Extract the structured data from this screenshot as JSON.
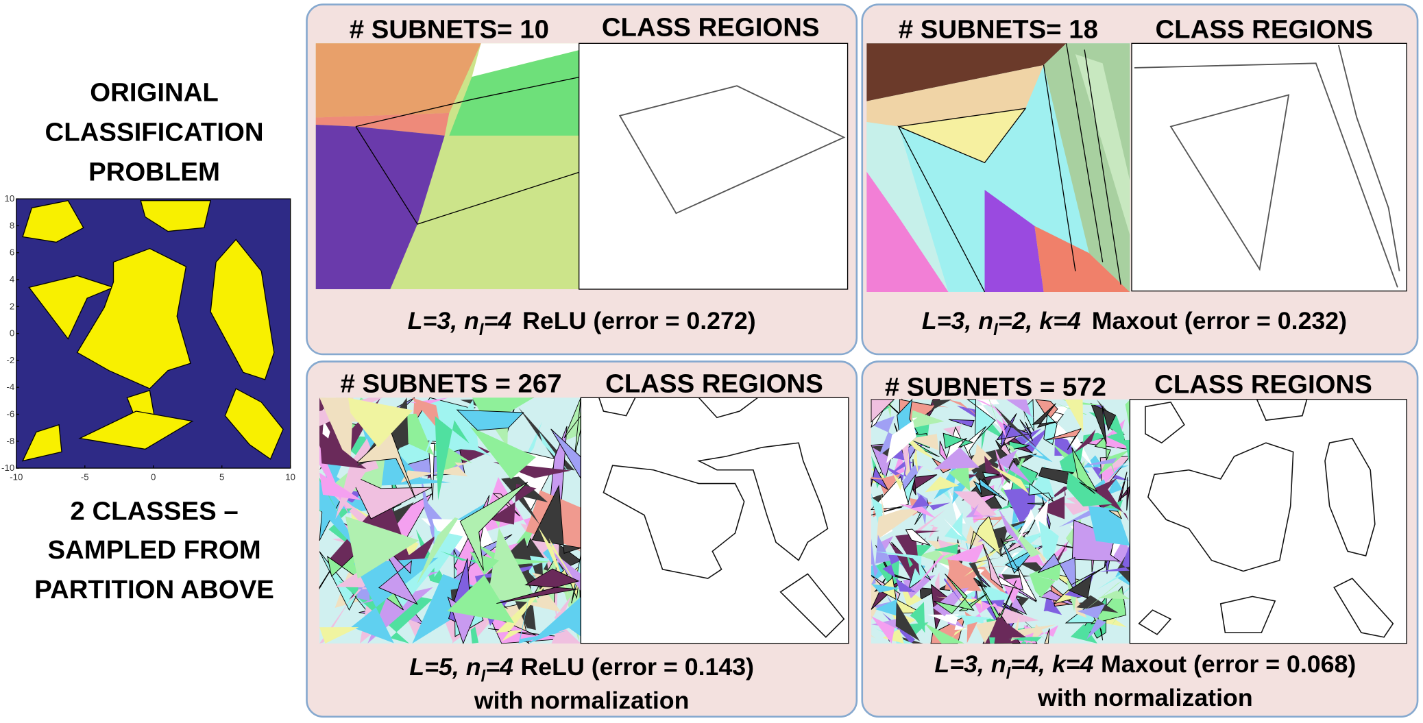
{
  "left": {
    "title_lines": [
      "ORIGINAL",
      "CLASSIFICATION",
      "PROBLEM"
    ],
    "caption_lines": [
      "2 CLASSES –",
      "SAMPLED FROM",
      "PARTITION ABOVE"
    ],
    "plot": {
      "xticks": [
        -10,
        -5,
        0,
        5,
        10
      ],
      "yticks": [
        10,
        8,
        6,
        4,
        2,
        0,
        -2,
        -4,
        -6,
        -8,
        -10
      ]
    }
  },
  "panels": [
    {
      "subnets": "# SUBNETS= 10",
      "regions_title": "CLASS REGIONS",
      "caption_parts": [
        "L=3, n",
        "l",
        "=4",
        "ReLU (error = 0.272)"
      ]
    },
    {
      "subnets": "# SUBNETS= 18",
      "regions_title": "CLASS REGIONS",
      "caption_parts": [
        "L=3, n",
        "l",
        "=2, k=4",
        "Maxout (error = 0.232)"
      ]
    },
    {
      "subnets": "# SUBNETS = 267",
      "regions_title": "CLASS REGIONS",
      "caption_parts": [
        "L=5, n",
        "l",
        "=4",
        "ReLU (error = 0.143)"
      ],
      "caption_line2": "with normalization"
    },
    {
      "subnets": "# SUBNETS = 572",
      "regions_title": "CLASS REGIONS",
      "caption_parts": [
        "L=3, n",
        "l",
        "=4, k=4",
        "Maxout (error = 0.068)"
      ],
      "caption_line2": "with normalization"
    }
  ]
}
